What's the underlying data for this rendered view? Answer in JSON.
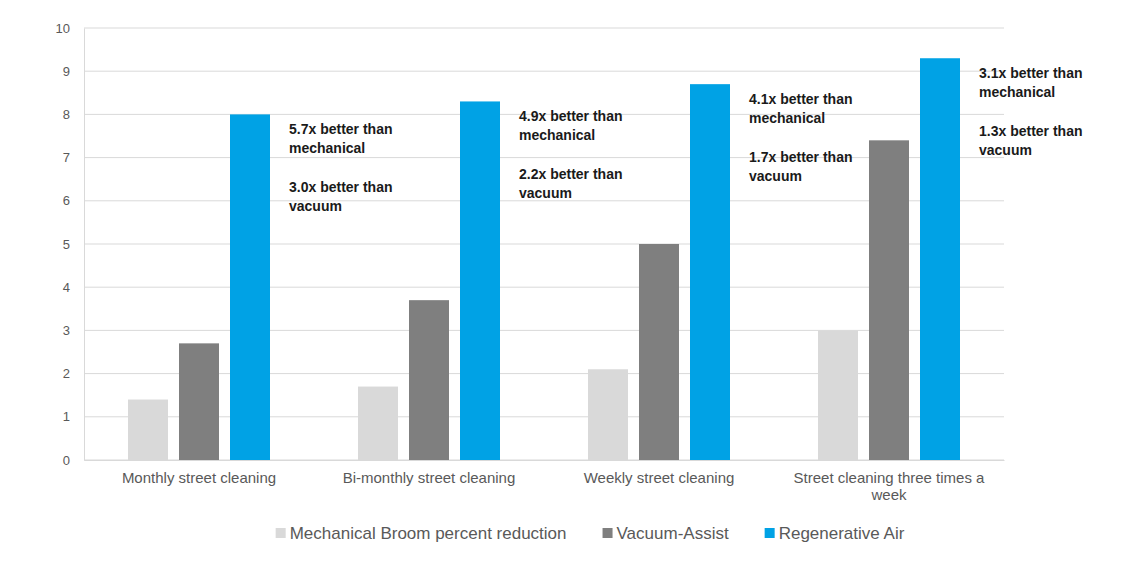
{
  "chart_data": {
    "type": "bar",
    "categories": [
      "Monthly street cleaning",
      "Bi-monthly street cleaning",
      "Weekly street cleaning",
      "Street cleaning three times a week"
    ],
    "series": [
      {
        "name": "Mechanical Broom percent reduction",
        "color": "#d9d9d9",
        "values": [
          1.4,
          1.7,
          2.1,
          3.0
        ]
      },
      {
        "name": "Vacuum-Assist",
        "color": "#7f7f7f",
        "values": [
          2.7,
          3.7,
          5.0,
          7.4
        ]
      },
      {
        "name": "Regenerative Air",
        "color": "#00a2e5",
        "values": [
          8.0,
          8.3,
          8.7,
          9.3
        ]
      }
    ],
    "annotations": [
      [
        "5.7x better than mechanical",
        "3.0x better than vacuum"
      ],
      [
        "4.9x better than mechanical",
        "2.2x better than vacuum"
      ],
      [
        "4.1x better than mechanical",
        "1.7x better than vacuum"
      ],
      [
        "3.1x better than mechanical",
        "1.3x better than vacuum"
      ]
    ],
    "ylim": [
      0,
      10
    ],
    "yticks": [
      0,
      1,
      2,
      3,
      4,
      5,
      6,
      7,
      8,
      9,
      10
    ],
    "grid": true,
    "legend": "bottom"
  }
}
